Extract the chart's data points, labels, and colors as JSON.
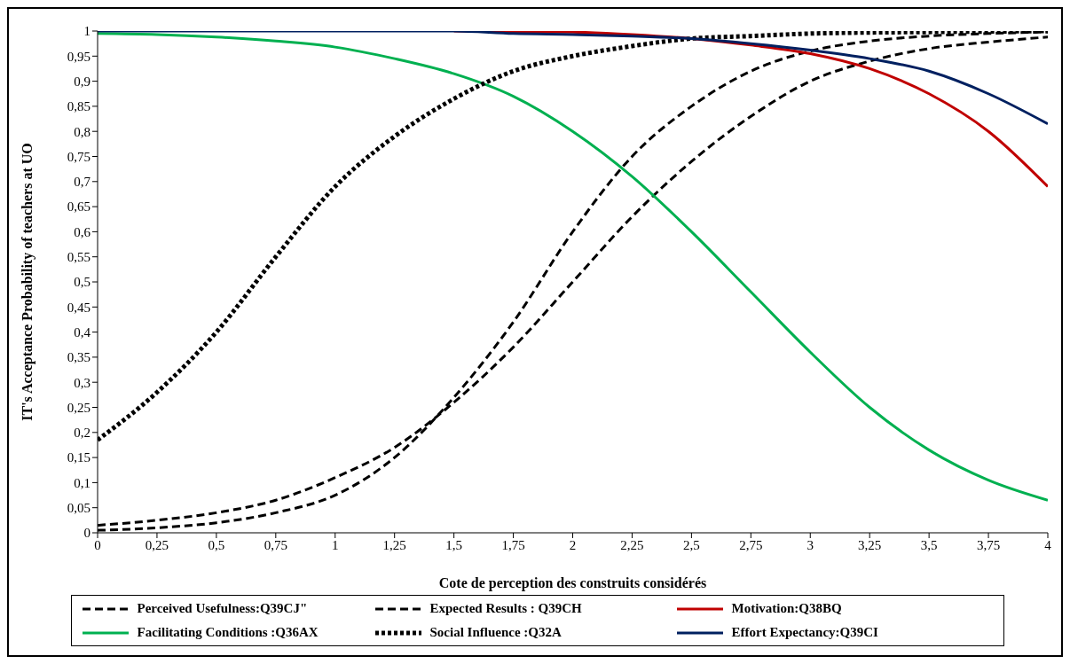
{
  "chart_data": {
    "type": "line",
    "xlabel": "Cote de perception des construits considérés",
    "ylabel": "IT's Acceptance Probability of teachers at UO",
    "x": [
      0,
      0.25,
      0.5,
      0.75,
      1,
      1.25,
      1.5,
      1.75,
      2,
      2.25,
      2.5,
      2.75,
      3,
      3.25,
      3.5,
      3.75,
      4
    ],
    "series": [
      {
        "name": "Perceived Usefulness:Q39CJ\"",
        "color": "#000000",
        "line_style": "dashed",
        "values": [
          0.015,
          0.025,
          0.04,
          0.065,
          0.11,
          0.17,
          0.26,
          0.37,
          0.5,
          0.63,
          0.74,
          0.83,
          0.9,
          0.94,
          0.965,
          0.978,
          0.988
        ]
      },
      {
        "name": "Expected Results : Q39CH",
        "color": "#000000",
        "line_style": "dashed",
        "values": [
          0.005,
          0.01,
          0.02,
          0.04,
          0.075,
          0.15,
          0.27,
          0.42,
          0.6,
          0.75,
          0.85,
          0.92,
          0.96,
          0.98,
          0.99,
          0.995,
          0.998
        ]
      },
      {
        "name": "Motivation:Q38BQ",
        "color": "#c00000",
        "line_style": "solid",
        "values": [
          null,
          null,
          null,
          null,
          null,
          null,
          1,
          0.999,
          0.998,
          0.993,
          0.985,
          0.972,
          0.955,
          0.925,
          0.875,
          0.8,
          0.69
        ]
      },
      {
        "name": "Facilitating Conditions :Q36AX",
        "color": "#00b050",
        "line_style": "solid",
        "values": [
          0.995,
          0.993,
          0.988,
          0.98,
          0.968,
          0.945,
          0.915,
          0.87,
          0.8,
          0.71,
          0.6,
          0.48,
          0.36,
          0.25,
          0.165,
          0.105,
          0.065
        ]
      },
      {
        "name": "Social Influence :Q32A",
        "color": "#000000",
        "line_style": "dotted",
        "values": [
          0.185,
          0.28,
          0.4,
          0.55,
          0.69,
          0.79,
          0.865,
          0.92,
          0.95,
          0.97,
          0.985,
          0.99,
          0.995,
          0.997,
          0.998,
          0.999,
          1
        ]
      },
      {
        "name": "Effort Expectancy:Q39CI",
        "color": "#002060",
        "line_style": "solid",
        "values": [
          1,
          1,
          1,
          1,
          1,
          1,
          1,
          0.995,
          0.993,
          0.99,
          0.985,
          0.975,
          0.962,
          0.945,
          0.92,
          0.875,
          0.815
        ]
      }
    ],
    "xlim": [
      0,
      4
    ],
    "xticks": [
      0,
      {
        "value": 0.25,
        "label": "0,25"
      },
      {
        "value": 0.5,
        "label": "0,5"
      },
      {
        "value": 0.75,
        "label": "0,75"
      },
      1,
      {
        "value": 1.25,
        "label": "1,25"
      },
      {
        "value": 1.5,
        "label": "1,5"
      },
      {
        "value": 1.75,
        "label": "1,75"
      },
      2,
      {
        "value": 2.25,
        "label": "2,25"
      },
      {
        "value": 2.5,
        "label": "2,5"
      },
      {
        "value": 2.75,
        "label": "2,75"
      },
      3,
      {
        "value": 3.25,
        "label": "3,25"
      },
      {
        "value": 3.5,
        "label": "3,5"
      },
      {
        "value": 3.75,
        "label": "3,75"
      },
      4
    ],
    "ylim": [
      0,
      1
    ],
    "yticks": [
      0,
      {
        "value": 0.05,
        "label": "0,05"
      },
      {
        "value": 0.1,
        "label": "0,1"
      },
      {
        "value": 0.15,
        "label": "0,15"
      },
      {
        "value": 0.2,
        "label": "0,2"
      },
      {
        "value": 0.25,
        "label": "0,25"
      },
      {
        "value": 0.3,
        "label": "0,3"
      },
      {
        "value": 0.35,
        "label": "0,35"
      },
      {
        "value": 0.4,
        "label": "0,4"
      },
      {
        "value": 0.45,
        "label": "0,45"
      },
      {
        "value": 0.5,
        "label": "0,5"
      },
      {
        "value": 0.55,
        "label": "0,55"
      },
      {
        "value": 0.6,
        "label": "0,6"
      },
      {
        "value": 0.65,
        "label": "0,65"
      },
      {
        "value": 0.7,
        "label": "0,7"
      },
      {
        "value": 0.75,
        "label": "0,75"
      },
      {
        "value": 0.8,
        "label": "0,8"
      },
      {
        "value": 0.85,
        "label": "0,85"
      },
      {
        "value": 0.9,
        "label": "0,9"
      },
      {
        "value": 0.95,
        "label": "0,95"
      },
      1
    ],
    "grid": false,
    "legend": "bottom",
    "marker": "none"
  }
}
